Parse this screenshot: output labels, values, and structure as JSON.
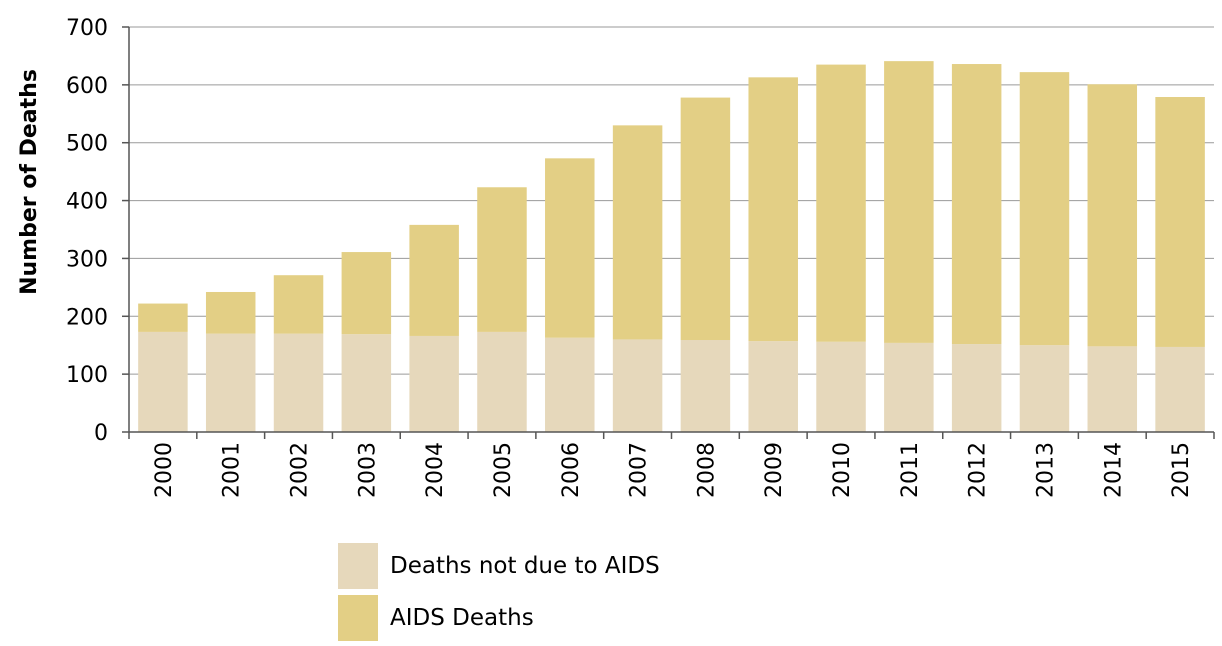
{
  "chart_data": {
    "type": "bar",
    "stacked": true,
    "ylabel": "Number of Deaths",
    "xlabel": "",
    "ylim": [
      0,
      700
    ],
    "yticks": [
      0,
      100,
      200,
      300,
      400,
      500,
      600,
      700
    ],
    "grid": true,
    "legend_position": "bottom",
    "categories": [
      "2000",
      "2001",
      "2002",
      "2003",
      "2004",
      "2005",
      "2006",
      "2007",
      "2008",
      "2009",
      "2010",
      "2011",
      "2012",
      "2013",
      "2014",
      "2015"
    ],
    "series": [
      {
        "name": "Deaths not due to AIDS",
        "color": "#e6d8bb",
        "values": [
          173,
          170,
          170,
          169,
          166,
          173,
          163,
          160,
          159,
          157,
          156,
          154,
          152,
          150,
          148,
          147
        ]
      },
      {
        "name": "AIDS Deaths",
        "color": "#e3cf85",
        "values": [
          49,
          72,
          101,
          142,
          192,
          250,
          310,
          370,
          419,
          456,
          479,
          487,
          484,
          472,
          453,
          432
        ]
      }
    ]
  }
}
